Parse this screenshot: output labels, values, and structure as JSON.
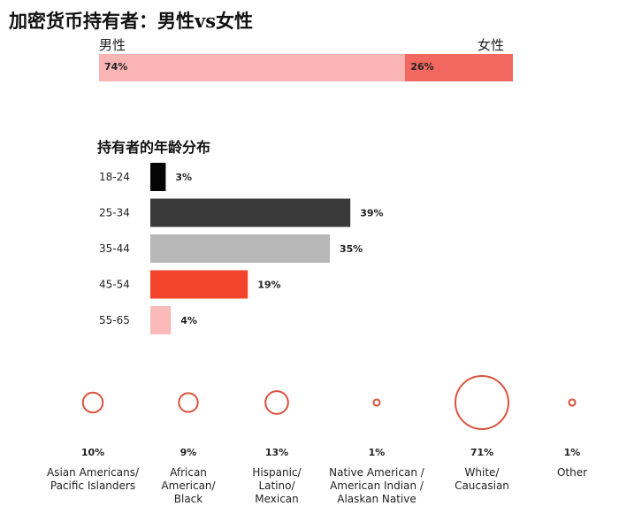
{
  "title": "加密货币持有者：男性vs女性",
  "colors": {
    "male": "#fbb4b4",
    "female": "#f2675f",
    "age": [
      "#050505",
      "#3a3a3a",
      "#b7b7b7",
      "#f2442a",
      "#fbb9b9"
    ],
    "circle": "#d9533f"
  },
  "chart_data": [
    {
      "type": "bar",
      "orientation": "horizontal-stacked",
      "categories": [
        "男性",
        "女性"
      ],
      "values": [
        74,
        26
      ],
      "labels": [
        "74%",
        "26%"
      ]
    },
    {
      "type": "bar",
      "orientation": "horizontal",
      "title": "持有者的年龄分布",
      "categories": [
        "18-24",
        "25-34",
        "35-44",
        "45-54",
        "55-65"
      ],
      "values": [
        3,
        39,
        35,
        19,
        4
      ],
      "labels": [
        "3%",
        "39%",
        "35%",
        "19%",
        "4%"
      ]
    },
    {
      "type": "scatter",
      "encoding": "bubble-area",
      "categories": [
        "Asian Americans/\nPacific Islanders",
        "African\nAmerican/\nBlack",
        "Hispanic/\nLatino/\nMexican",
        "Native American /\nAmerican Indian /\nAlaskan Native",
        "White/\nCaucasian",
        "Other"
      ],
      "values": [
        10,
        9,
        13,
        1,
        71,
        1
      ],
      "labels": [
        "10%",
        "9%",
        "13%",
        "1%",
        "71%",
        "1%"
      ]
    }
  ]
}
